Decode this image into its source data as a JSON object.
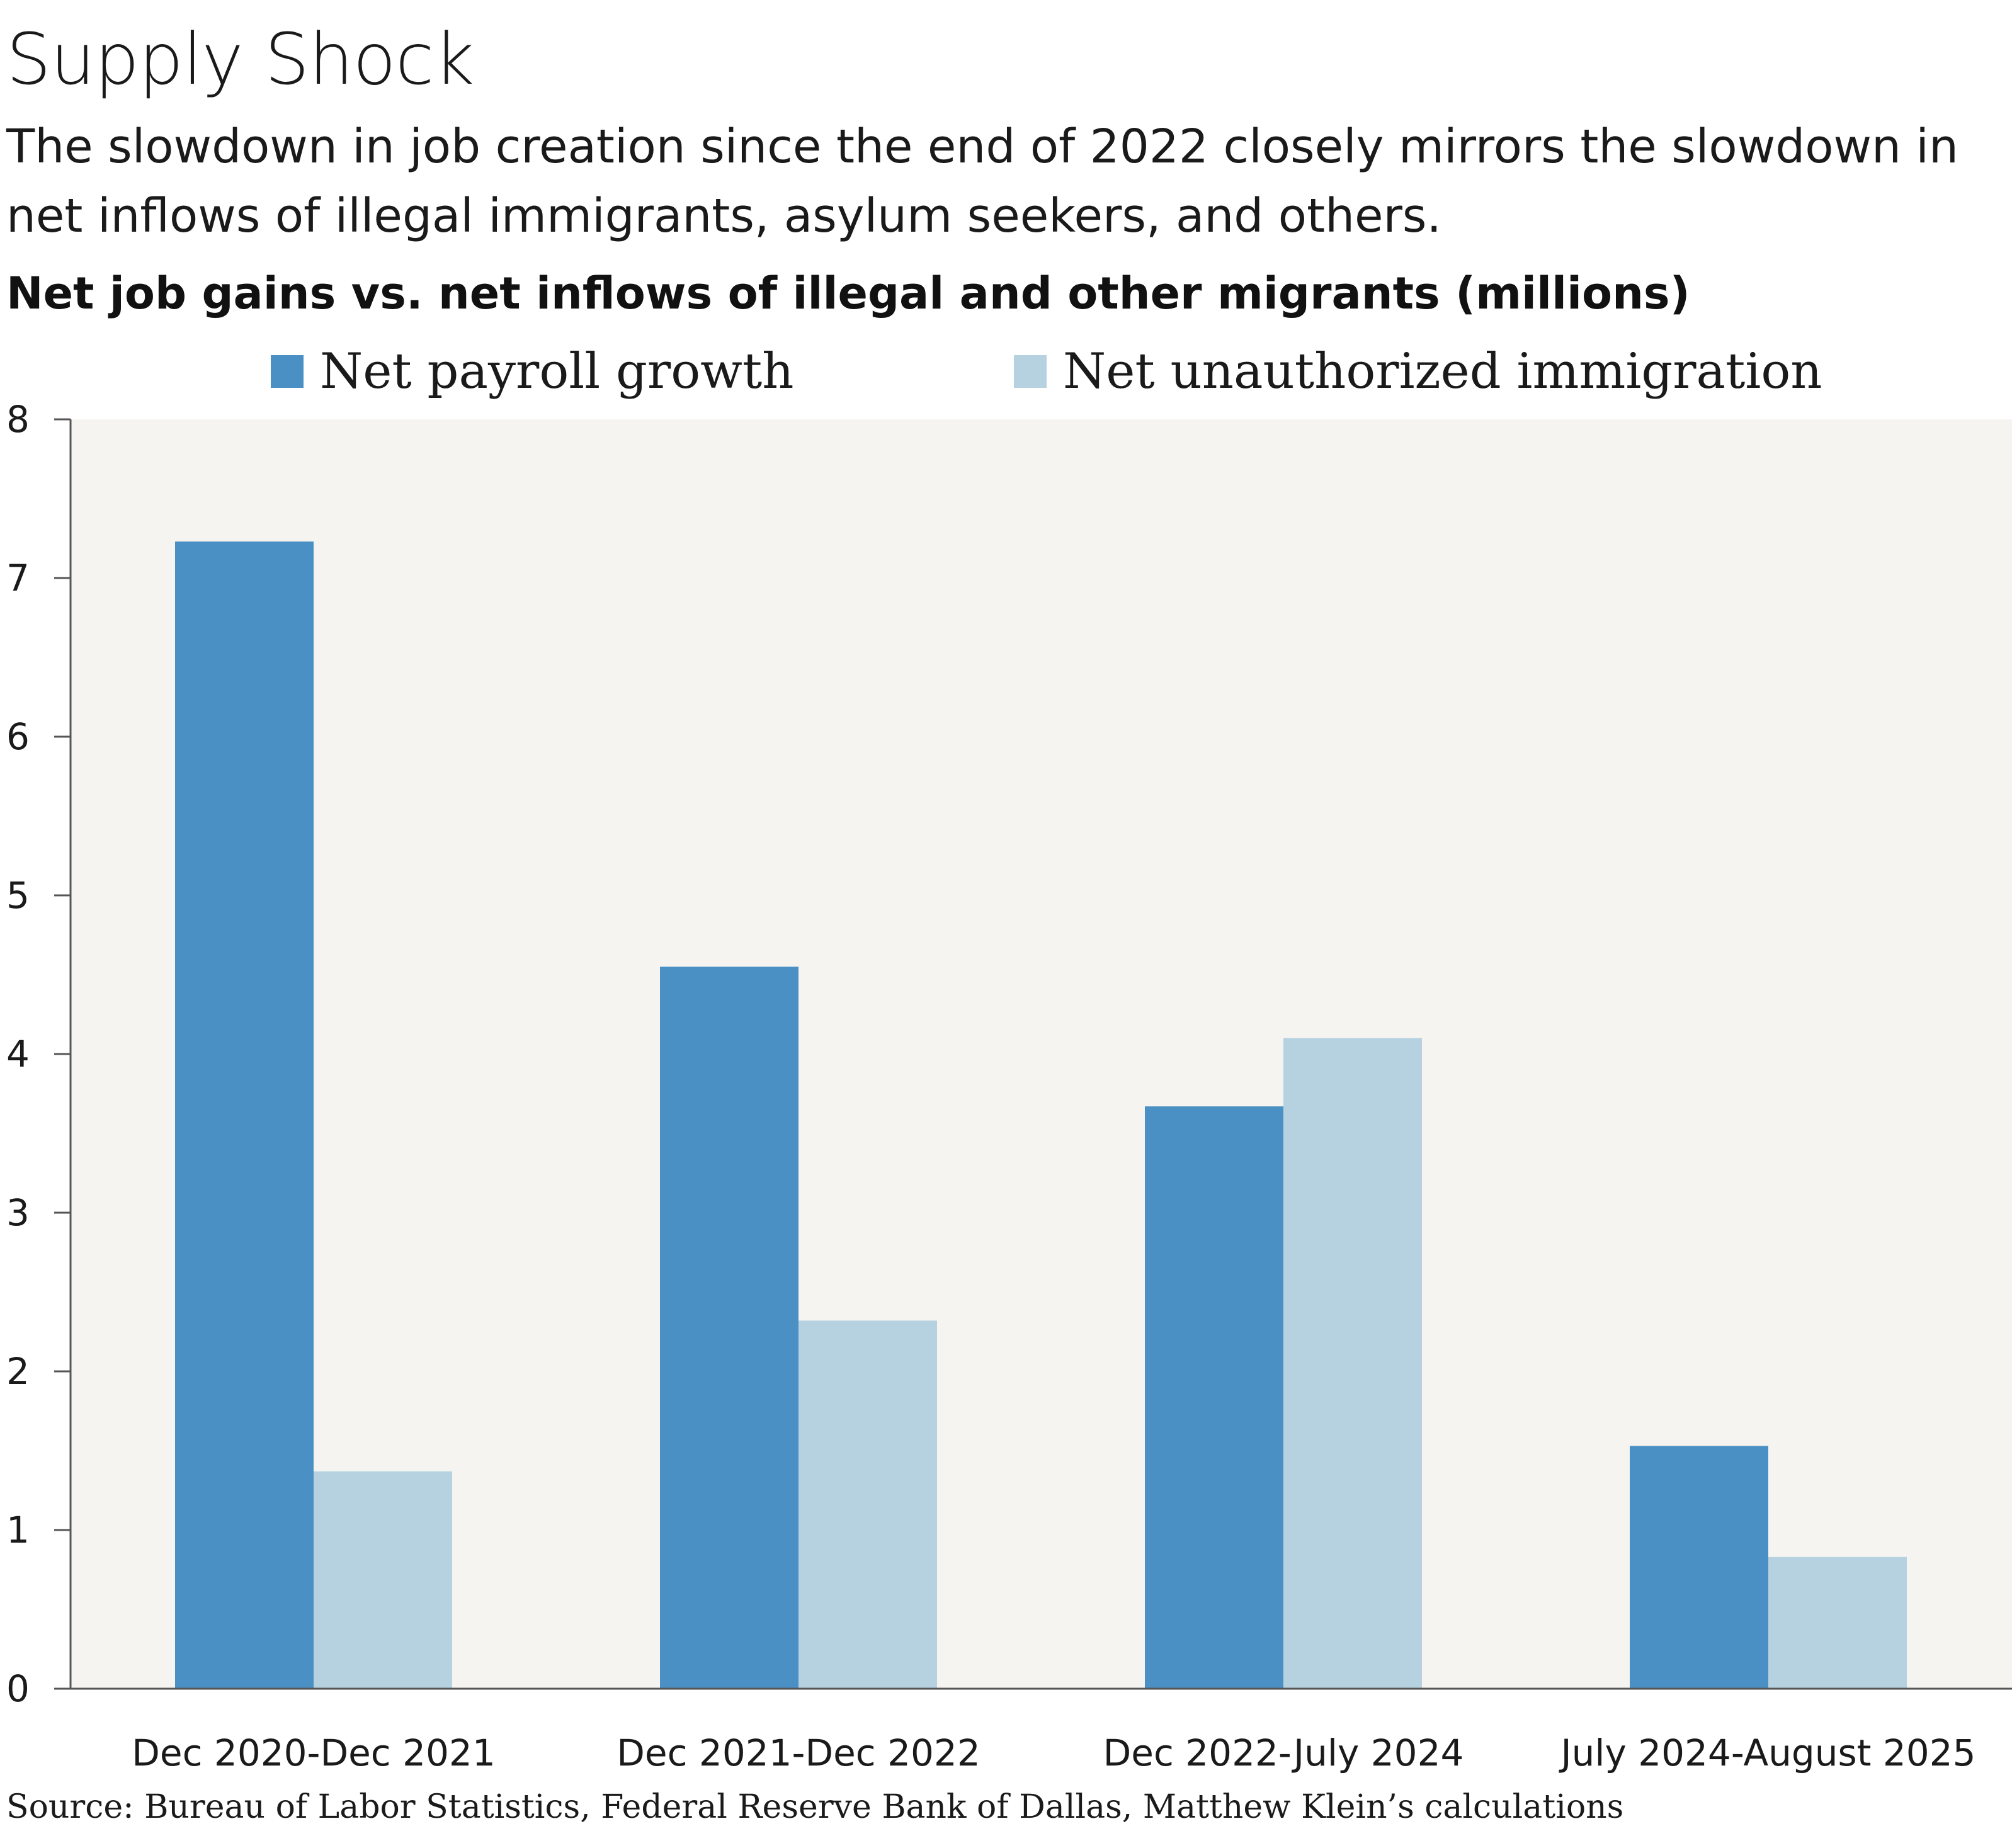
{
  "header": {
    "title": "Supply Shock",
    "subtitle": "The slowdown in job creation since the end of 2022 closely mirrors the slowdown in net inflows of illegal immigrants, asylum seekers, and others."
  },
  "chart_data": {
    "type": "bar",
    "title": "Net job gains vs. net inflows of illegal and other migrants (millions)",
    "xlabel": "",
    "ylabel": "",
    "ylim": [
      0,
      8
    ],
    "yticks": [
      0,
      1,
      2,
      3,
      4,
      5,
      6,
      7,
      8
    ],
    "ytick_labels": [
      "0",
      "1",
      "2",
      "3",
      "4",
      "5",
      "6",
      "7",
      "8"
    ],
    "categories": [
      "Dec 2020-Dec 2021",
      "Dec 2021-Dec 2022",
      "Dec 2022-July 2024",
      "July 2024-August 2025"
    ],
    "series": [
      {
        "name": "Net payroll growth",
        "color": "#4a90c4",
        "values": [
          7.23,
          4.55,
          3.67,
          1.53
        ]
      },
      {
        "name": "Net unauthorized immigration",
        "color": "#b6d2e0",
        "values": [
          1.37,
          2.32,
          4.1,
          0.83
        ]
      }
    ],
    "legend": "top-center",
    "plot_background": "#f6f4f1"
  },
  "footer": {
    "source": "Source: Bureau of Labor Statistics, Federal Reserve Bank of Dallas, Matthew Klein’s calculations"
  }
}
